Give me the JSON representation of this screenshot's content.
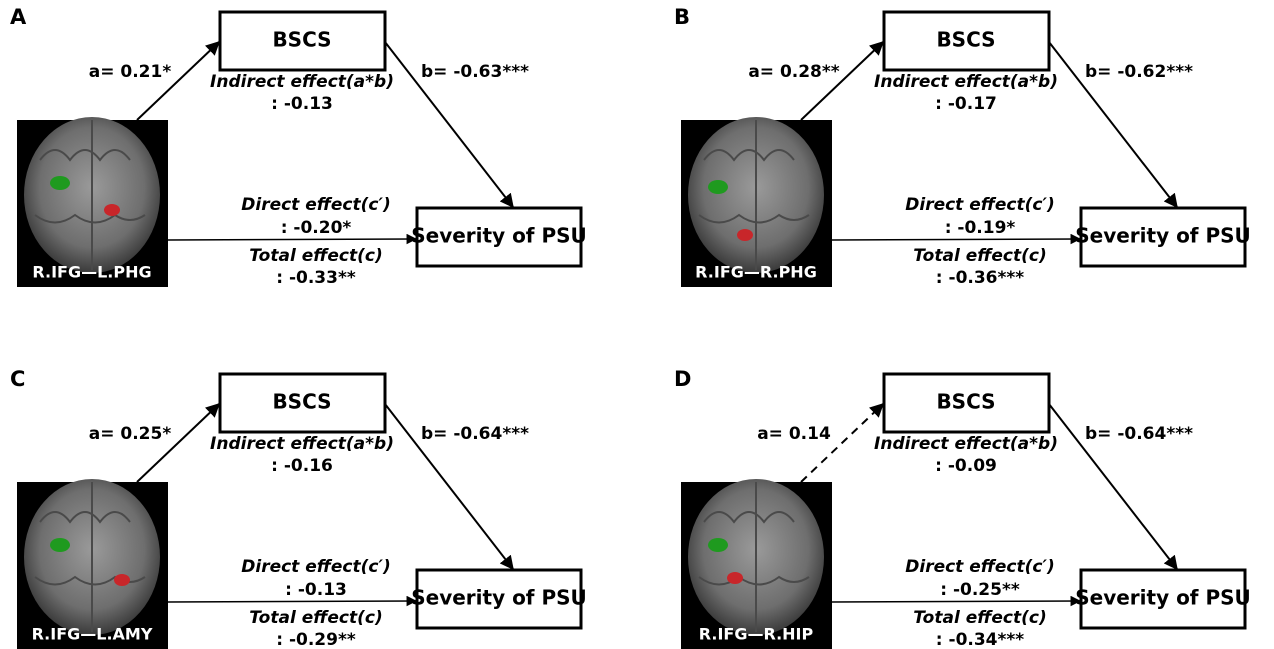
{
  "panels": [
    {
      "letter": "A",
      "mediator": "BSCS",
      "outcome": "Severity of PSU",
      "region": "R.IFG—L.PHG",
      "a": "a= 0.21*",
      "b": "b= -0.63***",
      "indirect_label": "Indirect effect(a*b)",
      "indirect_value": ": -0.13",
      "direct_label": "Direct effect(c′)",
      "direct_value": ": -0.20*",
      "total_label": "Total effect(c)",
      "total_value": ": -0.33**"
    },
    {
      "letter": "B",
      "mediator": "BSCS",
      "outcome": "Severity of PSU",
      "region": "R.IFG—R.PHG",
      "a": "a= 0.28**",
      "b": "b= -0.62***",
      "indirect_label": "Indirect effect(a*b)",
      "indirect_value": ": -0.17",
      "direct_label": "Direct effect(c′)",
      "direct_value": ": -0.19*",
      "total_label": "Total effect(c)",
      "total_value": ": -0.36***"
    },
    {
      "letter": "C",
      "mediator": "BSCS",
      "outcome": "Severity of PSU",
      "region": "R.IFG—L.AMY",
      "a": "a= 0.25*",
      "b": "b= -0.64***",
      "indirect_label": "Indirect effect(a*b)",
      "indirect_value": ": -0.16",
      "direct_label": "Direct effect(c′)",
      "direct_value": ": -0.13",
      "total_label": "Total effect(c)",
      "total_value": ": -0.29**"
    },
    {
      "letter": "D",
      "mediator": "BSCS",
      "outcome": "Severity of PSU",
      "region": "R.IFG—R.HIP",
      "a": "a= 0.14",
      "b": "b= -0.64***",
      "indirect_label": "Indirect effect(a*b)",
      "indirect_value": ": -0.09",
      "direct_label": "Direct effect(c′)",
      "direct_value": ": -0.25**",
      "total_label": "Total effect(c)",
      "total_value": ": -0.34***"
    }
  ]
}
